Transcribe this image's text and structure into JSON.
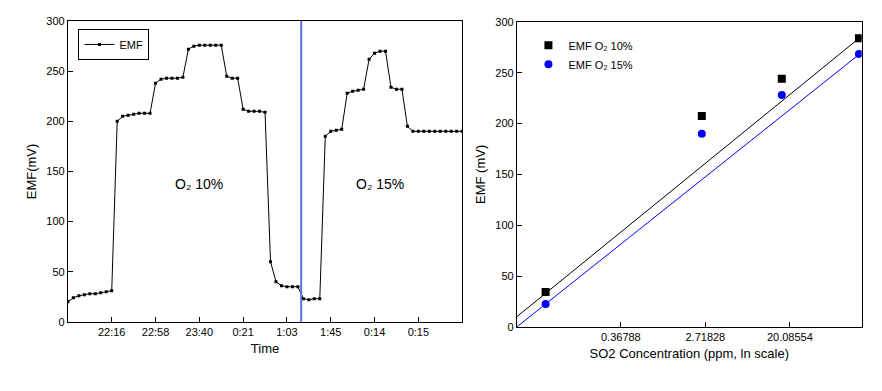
{
  "chart_data": [
    {
      "type": "line",
      "xlabel": "Time",
      "ylabel": "EMF(mV)",
      "categories": [
        null,
        null,
        null,
        null,
        null,
        null,
        null,
        null,
        "22:16",
        null,
        null,
        null,
        null,
        null,
        null,
        null,
        "22:58",
        null,
        null,
        null,
        null,
        null,
        null,
        null,
        "23:40",
        null,
        null,
        null,
        null,
        null,
        null,
        null,
        "0:21",
        null,
        null,
        null,
        null,
        null,
        null,
        null,
        "1:03",
        null,
        null,
        null,
        null,
        null,
        null,
        null,
        "1:45",
        null,
        null,
        null,
        null,
        null,
        null,
        null,
        "0:14",
        null,
        null,
        null,
        null,
        null,
        null,
        null,
        "0:15",
        null,
        null,
        null,
        null,
        null,
        null,
        null,
        null
      ],
      "ylim": [
        0,
        300
      ],
      "yticks": [
        0,
        50,
        100,
        150,
        200,
        250,
        300
      ],
      "grid": false,
      "legend": "upper left",
      "series": [
        {
          "name": "EMF",
          "color": "#000000",
          "marker": "square",
          "values": [
            20,
            24,
            26,
            27,
            28,
            28,
            29,
            30,
            31,
            200,
            205,
            206,
            207,
            208,
            208,
            208,
            238,
            242,
            243,
            243,
            243,
            244,
            272,
            275,
            276,
            276,
            276,
            276,
            276,
            245,
            243,
            243,
            212,
            210,
            210,
            210,
            209,
            60,
            40,
            36,
            35,
            35,
            35,
            23,
            22,
            23,
            23,
            185,
            190,
            191,
            192,
            228,
            230,
            231,
            232,
            262,
            268,
            270,
            270,
            234,
            232,
            232,
            195,
            190,
            190,
            190,
            190,
            190,
            190,
            190,
            190,
            190,
            190
          ]
        }
      ],
      "annotations": [
        {
          "text": "O₂ 10%",
          "x": 24,
          "y": 137
        },
        {
          "text": "O₂ 15%",
          "x": 57,
          "y": 137
        }
      ],
      "vline": 42.6
    },
    {
      "type": "scatter",
      "xlabel": "SO2 Concentration (ppm, ln scale)",
      "ylabel": "EMF (mV)",
      "log": "x",
      "xlim": [
        0.0314,
        110
      ],
      "xticks": [
        0.36788,
        2.71828,
        20.08554
      ],
      "ylim": [
        0,
        300
      ],
      "yticks": [
        0,
        50,
        100,
        150,
        200,
        250,
        300
      ],
      "grid": false,
      "legend": "upper left",
      "series": [
        {
          "name": "EMF O₂ 10%",
          "color": "#000000",
          "marker": "square",
          "x": [
            0.062,
            2.5,
            16.6,
            103
          ],
          "values": [
            34.4,
            207.5,
            244,
            284
          ]
        },
        {
          "name": "EMF O₂ 15%",
          "color": "#0000ff",
          "marker": "circle",
          "x": [
            0.062,
            2.5,
            16.6,
            103
          ],
          "values": [
            22.6,
            190,
            228,
            268.5
          ]
        },
        {
          "type": "line",
          "color": "#000000",
          "x": [
            0.0314,
            110
          ],
          "values": [
            10,
            286
          ]
        },
        {
          "type": "line",
          "color": "#0000ff",
          "x": [
            0.0314,
            110
          ],
          "values": [
            0,
            270
          ]
        }
      ]
    }
  ]
}
